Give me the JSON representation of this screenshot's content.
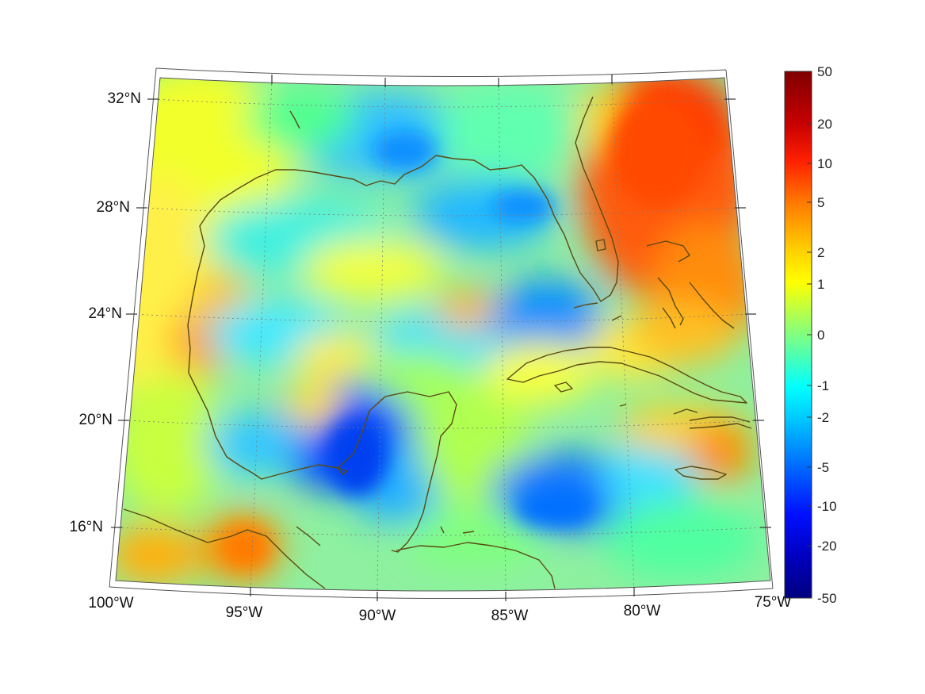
{
  "map": {
    "projection": "conic (Lambert-style)",
    "lat_labels": [
      "32°N",
      "28°N",
      "24°N",
      "20°N",
      "16°N"
    ],
    "lon_labels": [
      "100°W",
      "95°W",
      "90°W",
      "85°W",
      "80°W",
      "75°W"
    ],
    "coastline_color": "#5a4a12",
    "grid_color": "#7a7a7a",
    "region": "Gulf of Mexico / Caribbean"
  },
  "colorbar": {
    "ticks": [
      "50",
      "20",
      "10",
      "5",
      "2",
      "1",
      "0",
      "-1",
      "-2",
      "-5",
      "-10",
      "-20",
      "-50"
    ],
    "colormap": "jet",
    "gradient_colors": [
      "#800000",
      "#ff0000",
      "#ff8000",
      "#ffff00",
      "#80ff80",
      "#00ffff",
      "#0080ff",
      "#0000ff",
      "#000080"
    ]
  }
}
